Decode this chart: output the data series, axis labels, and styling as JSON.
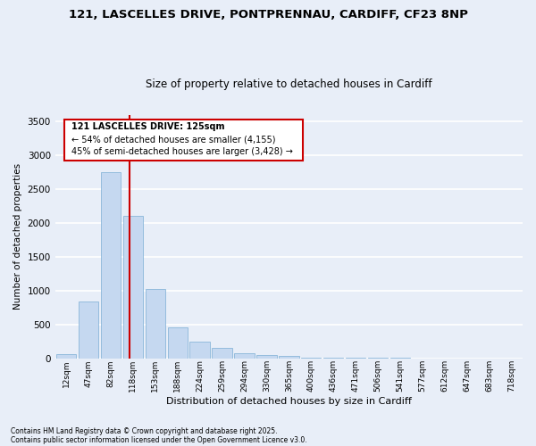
{
  "title1": "121, LASCELLES DRIVE, PONTPRENNAU, CARDIFF, CF23 8NP",
  "title2": "Size of property relative to detached houses in Cardiff",
  "xlabel": "Distribution of detached houses by size in Cardiff",
  "ylabel": "Number of detached properties",
  "categories": [
    "12sqm",
    "47sqm",
    "82sqm",
    "118sqm",
    "153sqm",
    "188sqm",
    "224sqm",
    "259sqm",
    "294sqm",
    "330sqm",
    "365sqm",
    "400sqm",
    "436sqm",
    "471sqm",
    "506sqm",
    "541sqm",
    "577sqm",
    "612sqm",
    "647sqm",
    "683sqm",
    "718sqm"
  ],
  "values": [
    60,
    840,
    2750,
    2100,
    1030,
    460,
    250,
    155,
    70,
    50,
    30,
    15,
    10,
    5,
    5,
    3,
    2,
    1,
    1,
    1,
    1
  ],
  "bar_color": "#c5d8f0",
  "bar_edge_color": "#7baed4",
  "bg_color": "#e8eef8",
  "grid_color": "#ffffff",
  "vline_x": 2.85,
  "vline_color": "#cc0000",
  "annotation_title": "121 LASCELLES DRIVE: 125sqm",
  "annotation_line1": "← 54% of detached houses are smaller (4,155)",
  "annotation_line2": "45% of semi-detached houses are larger (3,428) →",
  "annotation_box_color": "#cc0000",
  "ylim": [
    0,
    3600
  ],
  "yticks": [
    0,
    500,
    1000,
    1500,
    2000,
    2500,
    3000,
    3500
  ],
  "footer1": "Contains HM Land Registry data © Crown copyright and database right 2025.",
  "footer2": "Contains public sector information licensed under the Open Government Licence v3.0."
}
